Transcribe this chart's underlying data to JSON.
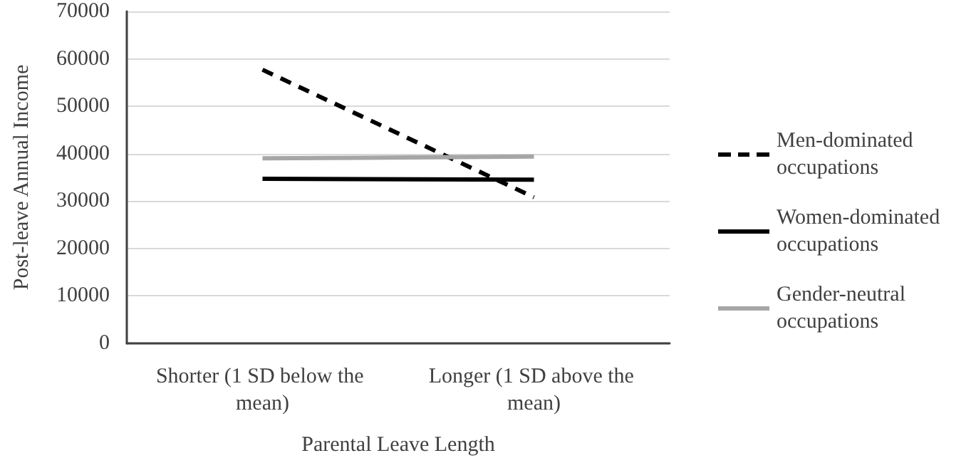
{
  "chart_data": {
    "type": "line",
    "xlabel": "Parental Leave Length",
    "ylabel": "Post-leave Annual Income",
    "categories": [
      "Shorter (1 SD below the mean)",
      "Longer (1 SD above the mean)"
    ],
    "series": [
      {
        "name": "Men-dominated occupations",
        "color": "#000000",
        "line_style": "dashed",
        "values": [
          57700,
          30800
        ]
      },
      {
        "name": "Women-dominated occupations",
        "color": "#000000",
        "line_style": "solid",
        "values": [
          34700,
          34500
        ]
      },
      {
        "name": "Gender-neutral occupations",
        "color": "#a6a6a6",
        "line_style": "solid",
        "values": [
          39000,
          39400
        ]
      }
    ],
    "ylim": [
      0,
      70000
    ],
    "yticks": [
      0,
      10000,
      20000,
      30000,
      40000,
      50000,
      60000,
      70000
    ],
    "grid": "y",
    "legend": "right",
    "marker": "none"
  }
}
